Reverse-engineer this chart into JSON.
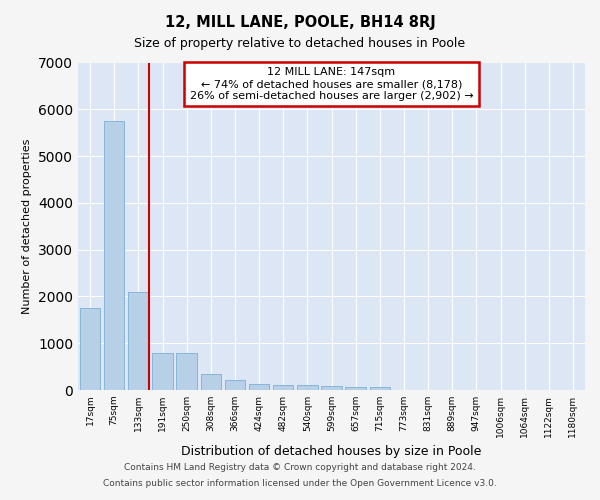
{
  "title": "12, MILL LANE, POOLE, BH14 8RJ",
  "subtitle": "Size of property relative to detached houses in Poole",
  "xlabel": "Distribution of detached houses by size in Poole",
  "ylabel": "Number of detached properties",
  "categories": [
    "17sqm",
    "75sqm",
    "133sqm",
    "191sqm",
    "250sqm",
    "308sqm",
    "366sqm",
    "424sqm",
    "482sqm",
    "540sqm",
    "599sqm",
    "657sqm",
    "715sqm",
    "773sqm",
    "831sqm",
    "889sqm",
    "947sqm",
    "1006sqm",
    "1064sqm",
    "1122sqm",
    "1180sqm"
  ],
  "values": [
    1750,
    5750,
    2100,
    800,
    800,
    350,
    210,
    130,
    110,
    110,
    75,
    70,
    70,
    0,
    0,
    0,
    0,
    0,
    0,
    0,
    0
  ],
  "bar_color": "#b8cfe8",
  "bar_edge_color": "#7aafd4",
  "red_line_index": 2,
  "annotation_title": "12 MILL LANE: 147sqm",
  "annotation_line1": "← 74% of detached houses are smaller (8,178)",
  "annotation_line2": "26% of semi-detached houses are larger (2,902) →",
  "annotation_box_color": "#ffffff",
  "annotation_box_edge": "#cc0000",
  "ylim": [
    0,
    7000
  ],
  "bg_color": "#dce6f5",
  "grid_color": "#ffffff",
  "fig_bg_color": "#f5f5f5",
  "footer_line1": "Contains HM Land Registry data © Crown copyright and database right 2024.",
  "footer_line2": "Contains public sector information licensed under the Open Government Licence v3.0."
}
